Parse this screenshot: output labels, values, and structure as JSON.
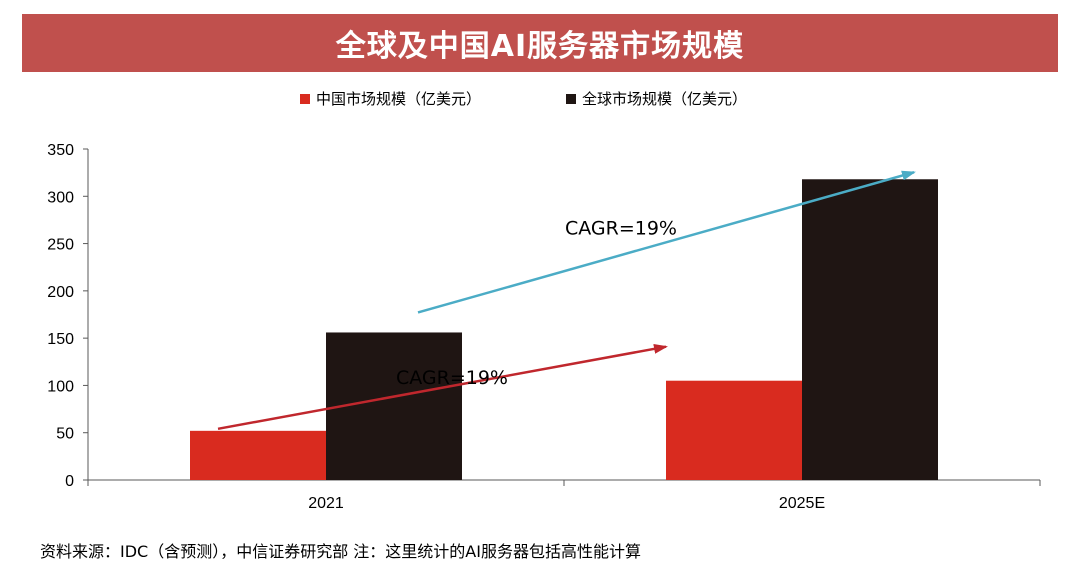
{
  "chart_data": {
    "type": "bar",
    "title": "全球及中国AI服务器市场规模",
    "categories": [
      "2021",
      "2025E"
    ],
    "series": [
      {
        "name": "中国市场规模（亿美元）",
        "color": "#d92b1f",
        "values": [
          52,
          105
        ]
      },
      {
        "name": "全球市场规模（亿美元）",
        "color": "#1f1513",
        "values": [
          156,
          318
        ]
      }
    ],
    "ylim": [
      0,
      350
    ],
    "yticks": [
      "0",
      "50",
      "100",
      "150",
      "200",
      "250",
      "300",
      "350"
    ],
    "xlabel": "",
    "ylabel": "",
    "legend_position": "top-center",
    "annotations": [
      {
        "text": "CAGR=19%",
        "series": "全球市场规模（亿美元）",
        "color": "#4bacc6"
      },
      {
        "text": "CAGR=19%",
        "series": "中国市场规模（亿美元）",
        "color": "#c0272d"
      }
    ]
  },
  "footer": {
    "source": "资料来源：IDC（含预测），中信证券研究部  注：这里统计的AI服务器包括高性能计算"
  }
}
